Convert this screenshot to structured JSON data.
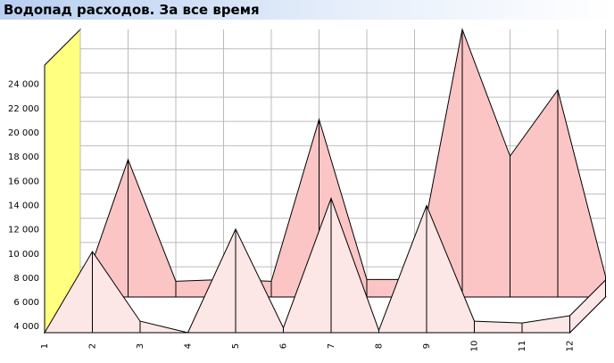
{
  "chart_data": {
    "type": "area3d",
    "title": "Водопад расходов. За все время",
    "categories": [
      "1",
      "2",
      "3",
      "4",
      "5",
      "6",
      "7",
      "8",
      "9",
      "10",
      "11",
      "12"
    ],
    "series": [
      {
        "color": "#fcc5c5",
        "values": [
          3500,
          14850,
          4800,
          4950,
          4800,
          18170,
          4950,
          4950,
          25600,
          15140,
          20600,
          5200
        ]
      },
      {
        "color": "#fde6e6",
        "values": [
          3500,
          10200,
          4450,
          3500,
          12050,
          3900,
          14600,
          3700,
          14000,
          4450,
          4300,
          4900
        ]
      }
    ],
    "ylim": [
      3500,
      25600
    ],
    "yticks": [
      {
        "value": 4000,
        "label": "4 000"
      },
      {
        "value": 6000,
        "label": "6 000"
      },
      {
        "value": 8000,
        "label": "8 000"
      },
      {
        "value": 10000,
        "label": "10 000"
      },
      {
        "value": 12000,
        "label": "12 000"
      },
      {
        "value": 14000,
        "label": "14 000"
      },
      {
        "value": 16000,
        "label": "16 000"
      },
      {
        "value": 18000,
        "label": "18 000"
      },
      {
        "value": 20000,
        "label": "20 000"
      },
      {
        "value": 22000,
        "label": "22 000"
      },
      {
        "value": 24000,
        "label": "24 000"
      }
    ],
    "grid": true,
    "wall_color": "#ffff80"
  }
}
